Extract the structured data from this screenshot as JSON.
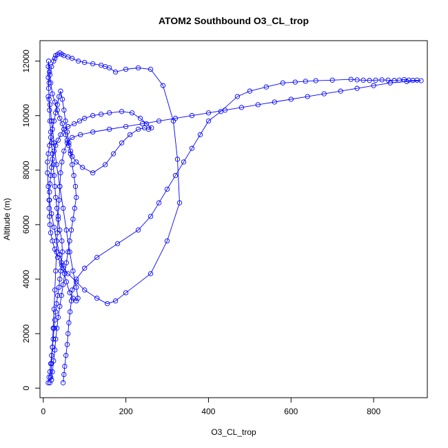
{
  "chart_data": {
    "type": "scatter",
    "title": "ATOM2 Southbound O3_CL_trop",
    "xlabel": "O3_CL_trop",
    "ylabel": "Altitude (m)",
    "xlim": [
      -8,
      930
    ],
    "ylim": [
      -350,
      12750
    ],
    "xticks": [
      0,
      200,
      400,
      600,
      800
    ],
    "yticks": [
      0,
      2000,
      4000,
      6000,
      8000,
      10000,
      12000
    ],
    "grid": false,
    "legend": "none",
    "color": "#0000FF",
    "marker": "open-circle",
    "connected": true,
    "series": [
      {
        "x": [
          12,
          14,
          16,
          18,
          20,
          22,
          24,
          26,
          28,
          30,
          32,
          35,
          38,
          40,
          42,
          44,
          46,
          45,
          40,
          36,
          33,
          30,
          28,
          26,
          24,
          22,
          20,
          18,
          16,
          15,
          14,
          13,
          12,
          12,
          13,
          15,
          18,
          22,
          28,
          34,
          40,
          46,
          50,
          54,
          58,
          62,
          66,
          70,
          80,
          95,
          120,
          150,
          170,
          190,
          210,
          230,
          245,
          255,
          262,
          250,
          235,
          215,
          190,
          160,
          140,
          120,
          100,
          88,
          75,
          60,
          50,
          42,
          36,
          30,
          26,
          22,
          20,
          18,
          16,
          15,
          14,
          14,
          15,
          16,
          18,
          22,
          28,
          35,
          45,
          60,
          80,
          100,
          130,
          155,
          175,
          200,
          260,
          300,
          330,
          325,
          315,
          290,
          260,
          230,
          200,
          175,
          160,
          150,
          140,
          120,
          100,
          85,
          70,
          60,
          50,
          45,
          40,
          35,
          30,
          28,
          25,
          20,
          16,
          14
        ],
        "y": [
          200,
          400,
          600,
          900,
          1200,
          1500,
          1800,
          2200,
          2500,
          2800,
          3100,
          3400,
          3700,
          4000,
          4300,
          4600,
          5000,
          5400,
          5800,
          6200,
          6600,
          7000,
          7400,
          7800,
          8200,
          8600,
          9000,
          9400,
          9800,
          10200,
          10600,
          11000,
          11400,
          11800,
          12000,
          11600,
          11200,
          10800,
          10500,
          10200,
          9900,
          9700,
          9500,
          9300,
          9100,
          8900,
          8700,
          8500,
          8300,
          8100,
          7900,
          8200,
          8600,
          9000,
          9300,
          9500,
          9550,
          9500,
          9550,
          9700,
          9900,
          10100,
          10150,
          10100,
          10050,
          10000,
          9900,
          9800,
          9700,
          9600,
          9500,
          9300,
          9100,
          8900,
          8700,
          8400,
          8100,
          7800,
          7500,
          7200,
          6900,
          6600,
          6300,
          6000,
          5700,
          5400,
          5100,
          4800,
          4500,
          4200,
          3900,
          3600,
          3300,
          3100,
          3200,
          3500,
          4200,
          5400,
          6800,
          8400,
          9800,
          11100,
          11700,
          11750,
          11700,
          11600,
          11750,
          11800,
          11850,
          11900,
          11950,
          12000,
          12100,
          12150,
          12200,
          12250,
          12300,
          12250,
          12200,
          12100,
          12000,
          11800,
          11500,
          11200
        ]
      },
      {
        "x": [
          48,
          50,
          52,
          55,
          58,
          60,
          62,
          65,
          68,
          70,
          80,
          100,
          130,
          180,
          230,
          260,
          280,
          300,
          320,
          340,
          360,
          380,
          400,
          430,
          470,
          500,
          540,
          580,
          610,
          635,
          660,
          700,
          745,
          760,
          775,
          790,
          805,
          820,
          835,
          850,
          862,
          874,
          885,
          895,
          905,
          915,
          880,
          840,
          800,
          760,
          720,
          680,
          640,
          600,
          560,
          520,
          480,
          440,
          400,
          360,
          320,
          280,
          240,
          200,
          160,
          120,
          90,
          70,
          58,
          50,
          45,
          42,
          40,
          38,
          36,
          34,
          32,
          30,
          28,
          26,
          24,
          22,
          20,
          18,
          16
        ],
        "y": [
          200,
          500,
          800,
          1200,
          1600,
          2000,
          2400,
          2800,
          3200,
          3600,
          4000,
          4400,
          4800,
          5300,
          5800,
          6300,
          6800,
          7300,
          7800,
          8300,
          8800,
          9300,
          9800,
          10150,
          10700,
          10900,
          11050,
          11200,
          11230,
          11260,
          11280,
          11300,
          11330,
          11310,
          11300,
          11290,
          11300,
          11310,
          11300,
          11290,
          11300,
          11320,
          11300,
          11290,
          11300,
          11280,
          11250,
          11200,
          11100,
          11000,
          10900,
          10800,
          10700,
          10600,
          10500,
          10400,
          10300,
          10200,
          10100,
          10000,
          9900,
          9800,
          9700,
          9600,
          9500,
          9400,
          9300,
          9200,
          9000,
          8700,
          8300,
          7900,
          7400,
          6900,
          6300,
          5700,
          5000,
          4300,
          3600,
          2900,
          2200,
          1500,
          900,
          400,
          200
        ]
      },
      {
        "x": [
          20,
          22,
          25,
          28,
          30,
          33,
          36,
          40,
          44,
          48,
          52,
          56,
          60,
          64,
          68,
          72,
          76,
          80,
          78,
          74,
          70,
          66,
          62,
          58,
          54,
          50,
          46,
          42,
          38,
          34,
          30,
          26,
          22,
          18,
          15,
          12,
          10,
          10,
          12,
          15,
          20,
          26,
          32,
          40,
          48,
          56,
          64,
          72,
          80,
          84,
          80,
          72,
          64,
          56,
          48,
          40,
          32,
          26,
          20,
          16,
          12
        ],
        "y": [
          300,
          600,
          1000,
          1400,
          1800,
          2200,
          2600,
          3000,
          3400,
          3800,
          4200,
          4600,
          5000,
          5400,
          5800,
          6200,
          6600,
          7000,
          7400,
          7800,
          8200,
          8600,
          9000,
          9400,
          9800,
          10200,
          10600,
          10900,
          10700,
          10400,
          10100,
          9800,
          9500,
          9200,
          8900,
          8600,
          8300,
          7900,
          7400,
          6900,
          6400,
          5900,
          5400,
          4900,
          4400,
          3900,
          3500,
          3300,
          3200,
          3300,
          3700,
          4300,
          5000,
          5800,
          6600,
          7400,
          8200,
          9000,
          9800,
          10400,
          10700
        ]
      }
    ]
  }
}
